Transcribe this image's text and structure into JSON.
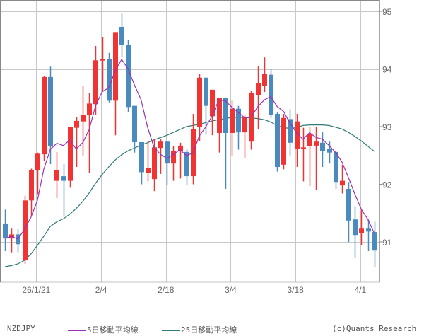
{
  "chart_data": {
    "type": "candlestick",
    "title": "NZDJPY",
    "symbol": "NZDJPY",
    "xlabel": "",
    "ylabel": "",
    "ylim": [
      90.3,
      95.2
    ],
    "y_ticks": [
      91,
      92,
      93,
      94,
      95
    ],
    "x_ticks": [
      {
        "label": "26/1/21",
        "index": 5
      },
      {
        "label": "2/4",
        "index": 15
      },
      {
        "label": "2/18",
        "index": 25
      },
      {
        "label": "3/4",
        "index": 35
      },
      {
        "label": "3/18",
        "index": 45
      },
      {
        "label": "4/1",
        "index": 55
      }
    ],
    "grid": true,
    "colors": {
      "up": "#f03434",
      "down": "#4a8bbf",
      "ma5": "#9b2fb5",
      "ma25": "#2e7b78",
      "grid": "#c8c8c8",
      "axis": "#888888"
    },
    "candles": [
      {
        "o": 91.32,
        "h": 91.56,
        "l": 90.84,
        "c": 91.06
      },
      {
        "o": 91.06,
        "h": 91.23,
        "l": 90.82,
        "c": 91.13
      },
      {
        "o": 91.13,
        "h": 91.22,
        "l": 90.82,
        "c": 90.96
      },
      {
        "o": 90.68,
        "h": 91.8,
        "l": 90.62,
        "c": 91.72
      },
      {
        "o": 91.72,
        "h": 92.27,
        "l": 91.45,
        "c": 92.25
      },
      {
        "o": 92.25,
        "h": 92.55,
        "l": 91.83,
        "c": 92.53
      },
      {
        "o": 92.52,
        "h": 93.88,
        "l": 92.4,
        "c": 93.86
      },
      {
        "o": 93.86,
        "h": 94.04,
        "l": 92.35,
        "c": 92.66
      },
      {
        "o": 92.06,
        "h": 92.56,
        "l": 91.76,
        "c": 92.25
      },
      {
        "o": 92.14,
        "h": 92.35,
        "l": 91.45,
        "c": 92.06
      },
      {
        "o": 92.06,
        "h": 93.0,
        "l": 91.94,
        "c": 92.99
      },
      {
        "o": 92.98,
        "h": 93.16,
        "l": 92.3,
        "c": 93.1
      },
      {
        "o": 93.09,
        "h": 93.71,
        "l": 92.5,
        "c": 93.2
      },
      {
        "o": 93.2,
        "h": 93.58,
        "l": 92.2,
        "c": 93.4
      },
      {
        "o": 93.39,
        "h": 94.4,
        "l": 93.2,
        "c": 94.15
      },
      {
        "o": 94.15,
        "h": 94.55,
        "l": 93.6,
        "c": 94.17
      },
      {
        "o": 94.17,
        "h": 94.28,
        "l": 93.42,
        "c": 93.45
      },
      {
        "o": 93.45,
        "h": 94.64,
        "l": 92.85,
        "c": 94.64
      },
      {
        "o": 94.73,
        "h": 94.96,
        "l": 94.2,
        "c": 94.42
      },
      {
        "o": 94.42,
        "h": 94.5,
        "l": 93.25,
        "c": 93.34
      },
      {
        "o": 93.36,
        "h": 93.36,
        "l": 92.55,
        "c": 92.73
      },
      {
        "o": 92.73,
        "h": 92.73,
        "l": 92.0,
        "c": 92.21
      },
      {
        "o": 92.2,
        "h": 92.75,
        "l": 92.05,
        "c": 92.28
      },
      {
        "o": 92.09,
        "h": 92.78,
        "l": 91.88,
        "c": 92.64
      },
      {
        "o": 92.63,
        "h": 92.78,
        "l": 92.18,
        "c": 92.74
      },
      {
        "o": 92.74,
        "h": 92.74,
        "l": 91.98,
        "c": 92.36
      },
      {
        "o": 92.36,
        "h": 92.66,
        "l": 92.06,
        "c": 92.58
      },
      {
        "o": 92.57,
        "h": 92.72,
        "l": 92.1,
        "c": 92.67
      },
      {
        "o": 92.56,
        "h": 92.62,
        "l": 91.98,
        "c": 92.14
      },
      {
        "o": 92.14,
        "h": 93.22,
        "l": 92.0,
        "c": 92.96
      },
      {
        "o": 92.99,
        "h": 93.91,
        "l": 92.75,
        "c": 93.85
      },
      {
        "o": 93.85,
        "h": 93.85,
        "l": 92.86,
        "c": 93.36
      },
      {
        "o": 93.18,
        "h": 93.55,
        "l": 92.85,
        "c": 93.64
      },
      {
        "o": 92.89,
        "h": 93.5,
        "l": 92.55,
        "c": 93.5
      },
      {
        "o": 93.5,
        "h": 93.5,
        "l": 91.92,
        "c": 92.89
      },
      {
        "o": 92.89,
        "h": 93.45,
        "l": 92.5,
        "c": 93.31
      },
      {
        "o": 93.31,
        "h": 93.36,
        "l": 92.6,
        "c": 92.9
      },
      {
        "o": 92.9,
        "h": 93.2,
        "l": 92.45,
        "c": 93.16
      },
      {
        "o": 92.74,
        "h": 93.62,
        "l": 92.6,
        "c": 93.58
      },
      {
        "o": 93.54,
        "h": 94.05,
        "l": 92.95,
        "c": 93.76
      },
      {
        "o": 93.7,
        "h": 94.2,
        "l": 93.6,
        "c": 93.91
      },
      {
        "o": 93.9,
        "h": 94.0,
        "l": 93.15,
        "c": 93.2
      },
      {
        "o": 93.22,
        "h": 93.25,
        "l": 92.22,
        "c": 92.3
      },
      {
        "o": 92.34,
        "h": 93.22,
        "l": 92.26,
        "c": 93.15
      },
      {
        "o": 93.13,
        "h": 93.3,
        "l": 92.5,
        "c": 92.72
      },
      {
        "o": 92.62,
        "h": 93.22,
        "l": 92.3,
        "c": 93.09
      },
      {
        "o": 92.63,
        "h": 92.98,
        "l": 92.05,
        "c": 92.64
      },
      {
        "o": 92.66,
        "h": 93.0,
        "l": 91.97,
        "c": 92.87
      },
      {
        "o": 92.67,
        "h": 92.99,
        "l": 91.9,
        "c": 92.74
      },
      {
        "o": 92.72,
        "h": 92.9,
        "l": 92.3,
        "c": 92.57
      },
      {
        "o": 92.62,
        "h": 92.74,
        "l": 92.36,
        "c": 92.55
      },
      {
        "o": 92.56,
        "h": 92.56,
        "l": 91.92,
        "c": 92.04
      },
      {
        "o": 91.98,
        "h": 92.34,
        "l": 91.84,
        "c": 92.06
      },
      {
        "o": 91.92,
        "h": 92.04,
        "l": 91.0,
        "c": 91.37
      },
      {
        "o": 91.39,
        "h": 91.62,
        "l": 90.72,
        "c": 91.12
      },
      {
        "o": 91.15,
        "h": 91.55,
        "l": 90.95,
        "c": 91.23
      },
      {
        "o": 91.23,
        "h": 91.39,
        "l": 90.84,
        "c": 91.18
      },
      {
        "o": 91.17,
        "h": 91.35,
        "l": 90.56,
        "c": 90.85
      }
    ],
    "series": [
      {
        "name": "5日移動平均線",
        "type": "line"
      },
      {
        "name": "25日移動平均線",
        "type": "line"
      }
    ],
    "ma25_start": [
      90.57,
      90.59,
      90.62,
      90.68,
      90.79,
      90.94,
      91.1,
      91.27,
      91.35,
      91.4,
      91.48,
      91.58,
      91.7,
      91.85,
      92.02,
      92.17,
      92.3,
      92.42,
      92.51,
      92.58,
      92.63,
      92.68,
      92.72,
      92.77,
      92.81,
      92.85,
      92.9,
      92.95,
      93.0,
      93.02,
      93.04,
      93.07,
      93.1,
      93.12,
      93.14,
      93.16,
      93.16,
      93.16,
      93.15,
      93.14,
      93.12,
      93.08,
      93.02,
      92.98,
      92.97,
      92.98,
      93.02,
      93.03,
      93.03,
      93.03,
      93.02,
      92.99,
      92.96,
      92.9,
      92.83,
      92.75,
      92.66,
      92.57
    ]
  },
  "legend": {
    "symbol": "NZDJPY",
    "ma5_label": "5日移動平均線",
    "ma25_label": "25日移動平均線",
    "copyright": "(c)Quants Research"
  }
}
